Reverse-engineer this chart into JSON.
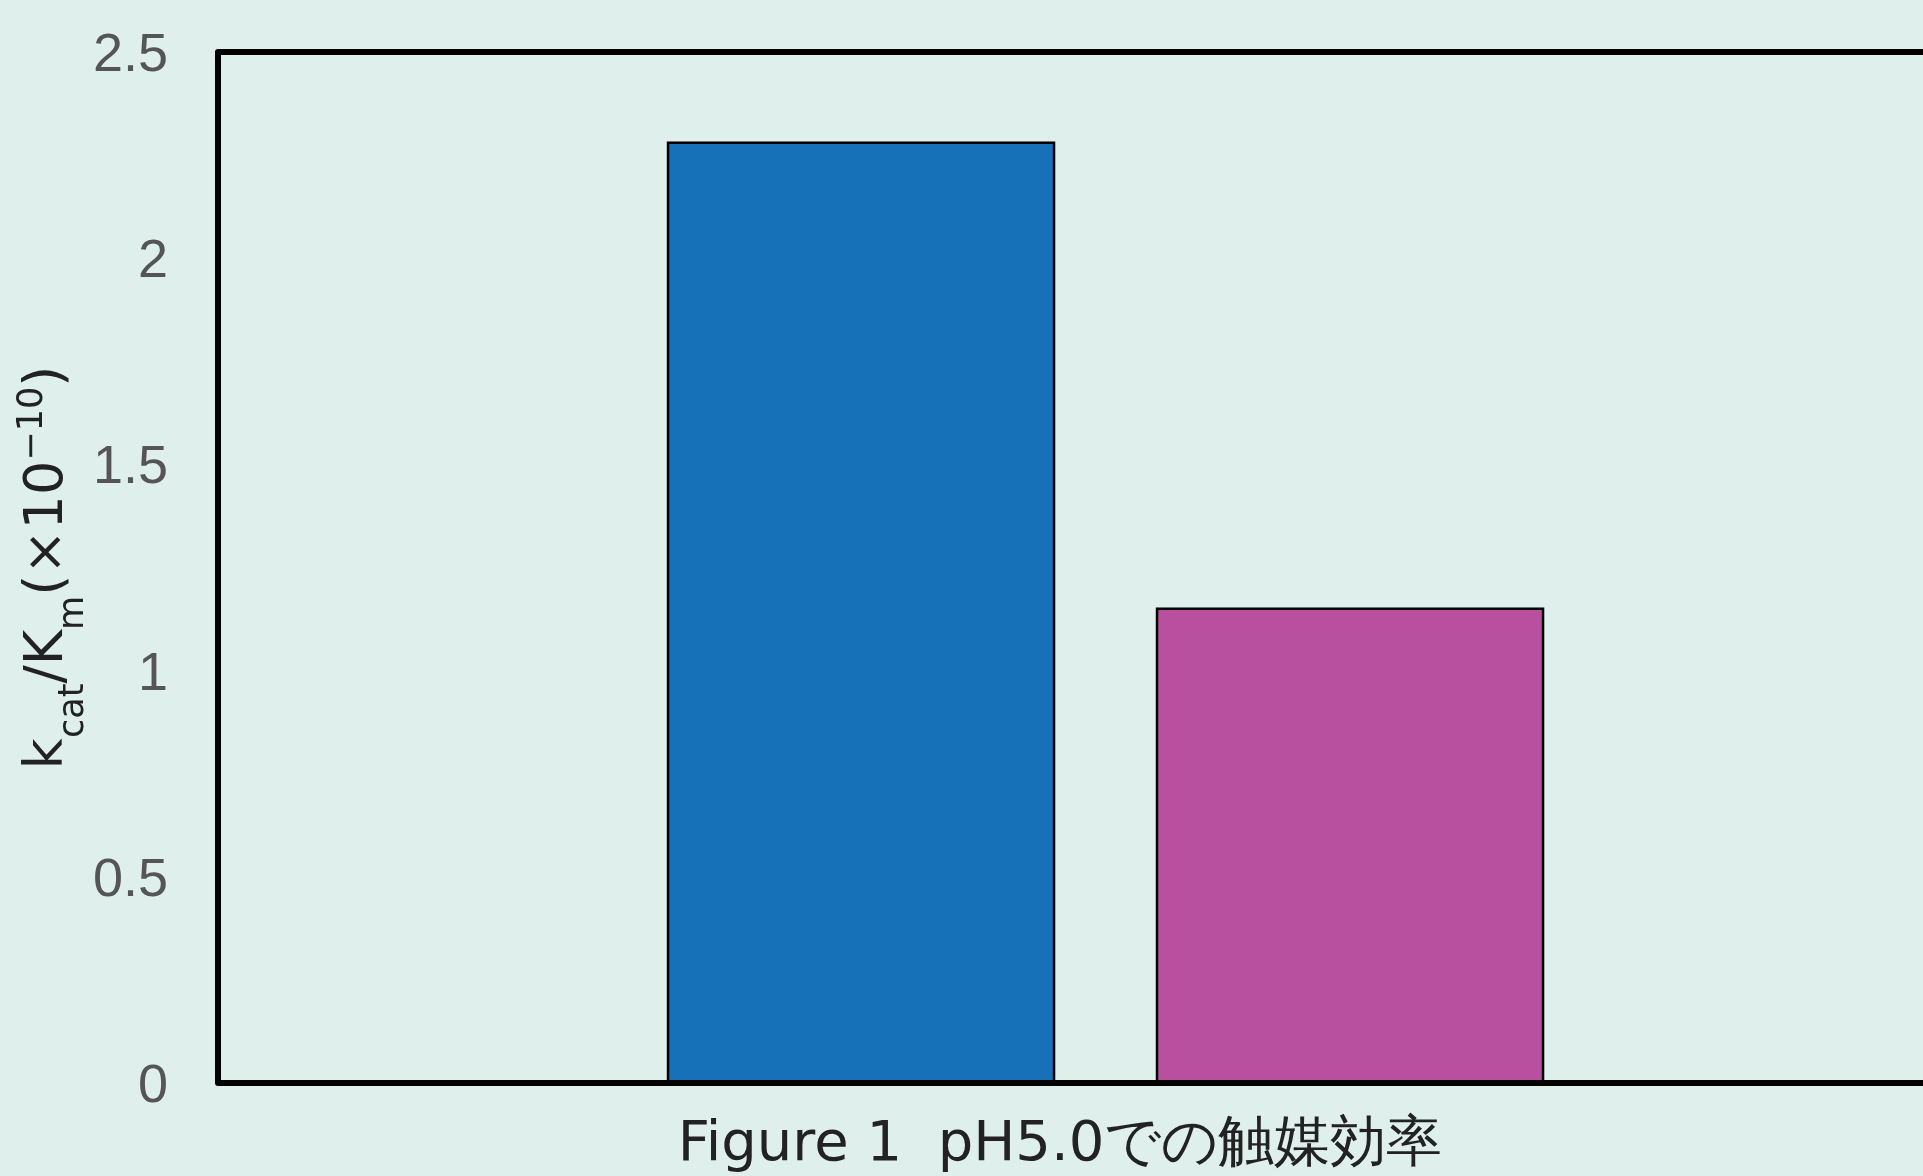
{
  "chart_data": {
    "type": "bar",
    "categories": [
      null,
      null
    ],
    "values": [
      2.28,
      1.15
    ],
    "colors": [
      "#1771b8",
      "#b8509f"
    ],
    "ylabel": "k$_{cat}$/K$_{m}$(×10$^{−10}$)",
    "ylim": [
      0,
      2.5
    ],
    "yticks": [
      0,
      0.5,
      1,
      1.5,
      2,
      2.5
    ],
    "annotations": [
      "Figure 1  pH5.0での触媒効率"
    ]
  }
}
